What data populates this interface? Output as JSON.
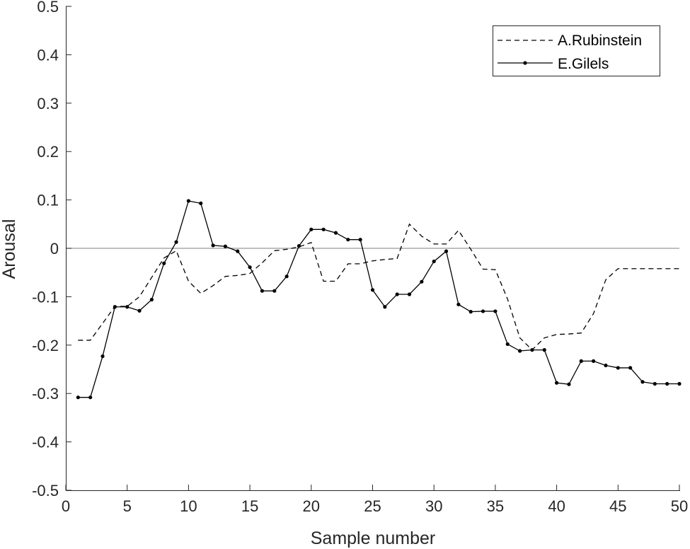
{
  "chart_data": {
    "type": "line",
    "title": "",
    "xlabel": "Sample number",
    "ylabel": "Arousal",
    "xlim": [
      0,
      50
    ],
    "ylim": [
      -0.5,
      0.5
    ],
    "xticks": [
      0,
      5,
      10,
      15,
      20,
      25,
      30,
      35,
      40,
      45,
      50
    ],
    "yticks": [
      -0.5,
      -0.4,
      -0.3,
      -0.2,
      -0.1,
      0,
      0.1,
      0.2,
      0.3,
      0.4,
      0.5
    ],
    "ytick_labels": [
      "-0.5",
      "-0.4",
      "-0.3",
      "-0.2",
      "-0.1",
      "0",
      "0.1",
      "0.2",
      "0.3",
      "0.4",
      "0.5"
    ],
    "grid": false,
    "zero_line": true,
    "legend_position": "top-right",
    "x": [
      1,
      2,
      3,
      4,
      5,
      6,
      7,
      8,
      9,
      10,
      11,
      12,
      13,
      14,
      15,
      16,
      17,
      18,
      19,
      20,
      21,
      22,
      23,
      24,
      25,
      26,
      27,
      28,
      29,
      30,
      31,
      32,
      33,
      34,
      35,
      36,
      37,
      38,
      39,
      40,
      41,
      42,
      43,
      44,
      45,
      46,
      47,
      48,
      49,
      50
    ],
    "series": [
      {
        "name": "A.Rubinstein",
        "style": "dashed",
        "markers": false,
        "color": "#000000",
        "values": [
          -0.19,
          -0.19,
          -0.155,
          -0.12,
          -0.12,
          -0.1,
          -0.06,
          -0.02,
          -0.005,
          -0.068,
          -0.093,
          -0.077,
          -0.058,
          -0.056,
          -0.052,
          -0.03,
          -0.005,
          -0.002,
          0.003,
          0.012,
          -0.068,
          -0.068,
          -0.032,
          -0.032,
          -0.026,
          -0.023,
          -0.021,
          0.05,
          0.025,
          0.009,
          0.009,
          0.037,
          -0.002,
          -0.043,
          -0.044,
          -0.105,
          -0.185,
          -0.21,
          -0.185,
          -0.178,
          -0.177,
          -0.175,
          -0.135,
          -0.065,
          -0.042,
          -0.042,
          -0.042,
          -0.042,
          -0.042,
          -0.042
        ]
      },
      {
        "name": "E.Gilels",
        "style": "solid",
        "markers": true,
        "color": "#000000",
        "values": [
          -0.308,
          -0.308,
          -0.223,
          -0.121,
          -0.121,
          -0.129,
          -0.106,
          -0.031,
          0.013,
          0.098,
          0.093,
          0.006,
          0.004,
          -0.006,
          -0.039,
          -0.088,
          -0.088,
          -0.058,
          0.005,
          0.039,
          0.039,
          0.032,
          0.018,
          0.018,
          -0.086,
          -0.121,
          -0.095,
          -0.095,
          -0.069,
          -0.027,
          -0.006,
          -0.116,
          -0.131,
          -0.13,
          -0.13,
          -0.198,
          -0.212,
          -0.21,
          -0.21,
          -0.278,
          -0.281,
          -0.233,
          -0.233,
          -0.242,
          -0.247,
          -0.247,
          -0.276,
          -0.28,
          -0.28,
          -0.28
        ]
      }
    ]
  }
}
